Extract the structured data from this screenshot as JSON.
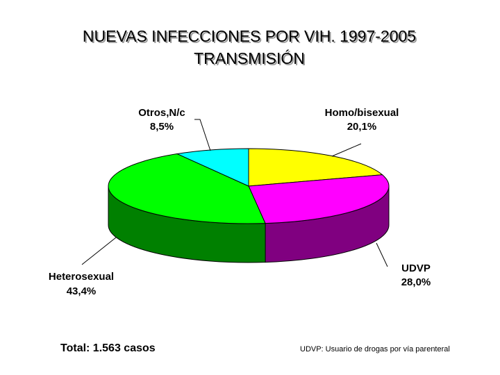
{
  "chart_data": {
    "type": "pie",
    "title": "NUEVAS INFECCIONES POR VIH. 1997-2005",
    "subtitle": "TRANSMISIÓN",
    "slices": [
      {
        "name": "Homo/bisexual",
        "value": 20.1,
        "value_label": "20,1%",
        "color": "#ffff00",
        "side_color": "#9a9a00"
      },
      {
        "name": "UDVP",
        "value": 28.0,
        "value_label": "28,0%",
        "color": "#ff00ff",
        "side_color": "#800080"
      },
      {
        "name": "Heterosexual",
        "value": 43.4,
        "value_label": "43,4%",
        "color": "#00ff00",
        "side_color": "#008000"
      },
      {
        "name": "Otros,N/c",
        "value": 8.5,
        "value_label": "8,5%",
        "color": "#00ffff",
        "side_color": "#009999"
      }
    ],
    "style": "3d"
  },
  "footer": {
    "total": "Total: 1.563 casos",
    "note": "UDVP: Usuario de drogas por vía parenteral"
  }
}
